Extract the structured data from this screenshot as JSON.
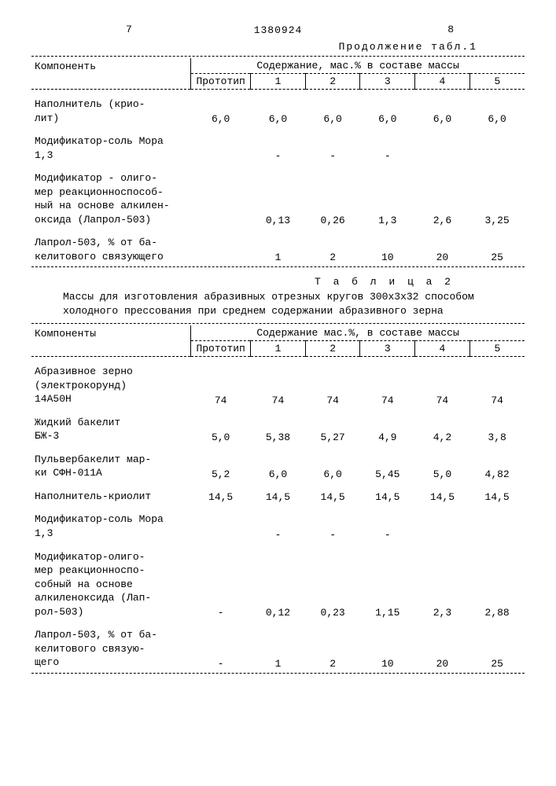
{
  "page": {
    "left_num": "7",
    "right_num": "8",
    "doc_number": "1380924"
  },
  "table1": {
    "continuation": "Продолжение табл.1",
    "header_component": "Компоненть",
    "header_content": "Содержание, мас.% в составе массы",
    "sub_headers": [
      "Прототип",
      "1",
      "2",
      "3",
      "4",
      "5"
    ],
    "rows": [
      {
        "label": "Наполнитель (крио-\nлит)",
        "vals": [
          "6,0",
          "6,0",
          "6,0",
          "6,0",
          "6,0",
          "6,0"
        ]
      },
      {
        "label": "Модификатор-соль Мора",
        "proto": "1,3",
        "vals": [
          "",
          "-",
          "-",
          "-",
          "",
          ""
        ]
      },
      {
        "label": "Модификатор - олиго-\nмер реакционноспособ-\nный на основе алкилен-\nоксида (Лапрол-503)",
        "vals": [
          "",
          "0,13",
          "0,26",
          "1,3",
          "2,6",
          "3,25"
        ]
      },
      {
        "label": "Лапрол-503, % от ба-\nкелитового связующего",
        "vals": [
          "",
          "1",
          "2",
          "10",
          "20",
          "25"
        ]
      }
    ]
  },
  "table2": {
    "title": "Т а б л и ц а 2",
    "caption": "Массы для   изготовления абразивных отрезных кругов 300х3х32 способом холодного прессования при среднем содержании абразивного зерна",
    "header_component": "Компоненты",
    "header_content": "Содержание мас.%, в составе массы",
    "sub_headers": [
      "Прототип",
      "1",
      "2",
      "3",
      "4",
      "5"
    ],
    "rows": [
      {
        "label": "Абразивное зерно\n(электрокорунд)\n14А50Н",
        "vals": [
          "74",
          "74",
          "74",
          "74",
          "74",
          "74"
        ]
      },
      {
        "label": "Жидкий бакелит\nБЖ-3",
        "vals": [
          "5,0",
          "5,38",
          "5,27",
          "4,9",
          "4,2",
          "3,8"
        ]
      },
      {
        "label": "Пульвербакелит мар-\nки СФН-011А",
        "vals": [
          "5,2",
          "6,0",
          "6,0",
          "5,45",
          "5,0",
          "4,82"
        ]
      },
      {
        "label": "Наполнитель-криолит",
        "vals": [
          "14,5",
          "14,5",
          "14,5",
          "14,5",
          "14,5",
          "14,5"
        ]
      },
      {
        "label": "Модификатор-соль Мора",
        "proto": "1,3",
        "vals": [
          "",
          "-",
          "-",
          "-",
          "",
          ""
        ]
      },
      {
        "label": "Модификатор-олиго-\nмер реакционноспо-\nсобный на основе\nалкиленоксида (Лап-\nрол-503)",
        "vals": [
          "-",
          "0,12",
          "0,23",
          "1,15",
          "2,3",
          "2,88"
        ]
      },
      {
        "label": "Лапрол-503, % от ба-\nкелитового связую-\nщего",
        "vals": [
          "-",
          "1",
          "2",
          "10",
          "20",
          "25"
        ]
      }
    ]
  },
  "col_widths": {
    "label": "32%",
    "proto": "12%",
    "c": "11%"
  }
}
